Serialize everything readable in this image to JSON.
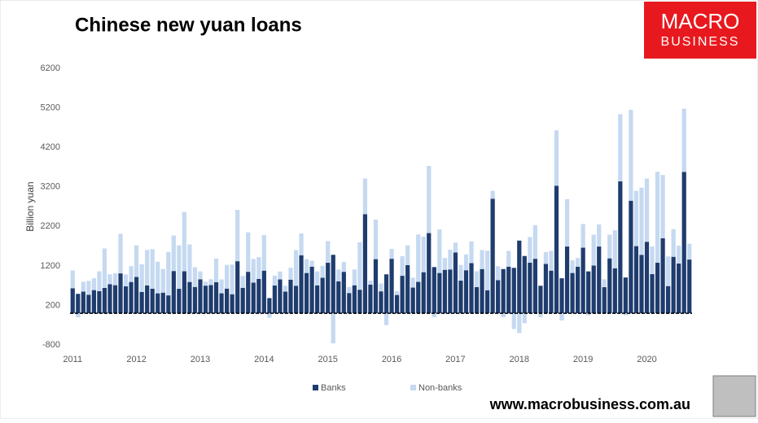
{
  "chart_data": {
    "type": "bar",
    "stacked": true,
    "title": "Chinese new yuan loans",
    "y_label": "Billion yuan",
    "logo": [
      "MACRO",
      "BUSINESS"
    ],
    "source": "www.macrobusiness.com.au",
    "categories": [
      "2011",
      null,
      null,
      null,
      null,
      null,
      null,
      null,
      null,
      null,
      null,
      null,
      "2012",
      null,
      null,
      null,
      null,
      null,
      null,
      null,
      null,
      null,
      null,
      null,
      "2013",
      null,
      null,
      null,
      null,
      null,
      null,
      null,
      null,
      null,
      null,
      null,
      "2014",
      null,
      null,
      null,
      null,
      null,
      null,
      null,
      null,
      null,
      null,
      null,
      "2015",
      null,
      null,
      null,
      null,
      null,
      null,
      null,
      null,
      null,
      null,
      null,
      "2016",
      null,
      null,
      null,
      null,
      null,
      null,
      null,
      null,
      null,
      null,
      null,
      "2017",
      null,
      null,
      null,
      null,
      null,
      null,
      null,
      null,
      null,
      null,
      null,
      "2018",
      null,
      null,
      null,
      null,
      null,
      null,
      null,
      null,
      null,
      null,
      null,
      "2019",
      null,
      null,
      null,
      null,
      null,
      null,
      null,
      null,
      null,
      null,
      null,
      "2020",
      null,
      null,
      null,
      null,
      null,
      null,
      null,
      null
    ],
    "series": [
      {
        "name": "Banks",
        "color": "#1f3c6e",
        "values": [
          634,
          492,
          548,
          470,
          587,
          562,
          641,
          738,
          711,
          1010,
          682,
          793,
          920,
          540,
          704,
          623,
          505,
          523,
          454,
          1070,
          620,
          1063,
          793,
          667,
          861,
          700,
          713,
          787,
          506,
          625,
          483,
          1318,
          645,
          1050,
          775,
          871,
          1080,
          385,
          703,
          857,
          548,
          852,
          697,
          1470,
          1020,
          1180,
          708,
          901,
          1279,
          1480,
          810,
          1050,
          513,
          709,
          597,
          2510,
          727,
          1370,
          556,
          986,
          1380,
          464,
          949,
          1220,
          651,
          795,
          1040,
          2030,
          1170,
          1020,
          1100,
          1110,
          1540,
          826,
          1090,
          1270,
          663,
          1120,
          584,
          2900,
          839,
          1120,
          1180,
          1150,
          1840,
          1450,
          1280,
          1380,
          697,
          1250,
          1080,
          3230,
          886,
          1690,
          1020,
          1180,
          1660,
          1060,
          1210,
          1690,
          661,
          1390,
          1140,
          3340,
          906,
          2850,
          1700,
          1480,
          1810,
          992,
          1280,
          1900,
          689,
          1430,
          1260,
          3580,
          1360
        ]
      },
      {
        "name": "Non-banks",
        "color": "#c5d9f1",
        "values": [
          450,
          -100,
          250,
          350,
          300,
          500,
          1000,
          250,
          300,
          1000,
          300,
          400,
          800,
          700,
          900,
          1000,
          800,
          600,
          1100,
          900,
          1100,
          1500,
          950,
          500,
          200,
          100,
          150,
          600,
          350,
          600,
          750,
          1300,
          300,
          1000,
          600,
          550,
          900,
          -110,
          250,
          200,
          150,
          300,
          900,
          550,
          350,
          150,
          350,
          300,
          550,
          -760,
          300,
          250,
          150,
          400,
          1200,
          900,
          100,
          1000,
          200,
          -300,
          250,
          100,
          500,
          500,
          250,
          1200,
          900,
          1700,
          -100,
          1100,
          300,
          500,
          250,
          400,
          400,
          550,
          400,
          480,
          1000,
          200,
          350,
          -100,
          400,
          -400,
          -500,
          -250,
          650,
          850,
          -100,
          300,
          500,
          1400,
          -180,
          1200,
          320,
          220,
          600,
          -50,
          780,
          560,
          200,
          600,
          960,
          1700,
          -50,
          2300,
          1400,
          1700,
          1600,
          700,
          2300,
          1600,
          750,
          700,
          450,
          1600,
          400
        ]
      }
    ],
    "ylim": [
      -800,
      6200
    ],
    "yticks": [
      -800,
      200,
      1200,
      2200,
      3200,
      4200,
      5200,
      6200
    ],
    "grid": false,
    "legend": "bottom"
  }
}
